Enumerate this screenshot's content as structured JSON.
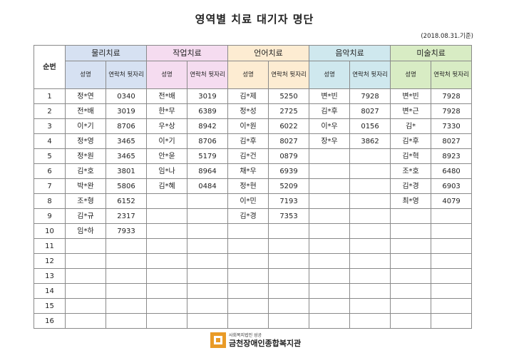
{
  "title": "영역별 치료 대기자 명단",
  "date_note": "(2018.08.31.기준)",
  "header": {
    "number_label": "순번",
    "name_label": "성명",
    "phone_label": "연락처 뒷자리"
  },
  "groups": [
    {
      "label": "물리치료",
      "color": "#d6e1f2"
    },
    {
      "label": "작업치료",
      "color": "#f5dcf0"
    },
    {
      "label": "언어치료",
      "color": "#fdecd2"
    },
    {
      "label": "음악치료",
      "color": "#cfe8ee"
    },
    {
      "label": "미술치료",
      "color": "#d8ecc4"
    }
  ],
  "rows": [
    {
      "num": "1",
      "cells": [
        [
          "정*연",
          "0340"
        ],
        [
          "전*배",
          "3019"
        ],
        [
          "김*제",
          "5250"
        ],
        [
          "변*빈",
          "7928"
        ],
        [
          "변*빈",
          "7928"
        ]
      ]
    },
    {
      "num": "2",
      "cells": [
        [
          "전*배",
          "3019"
        ],
        [
          "한*무",
          "6389"
        ],
        [
          "정*성",
          "2725"
        ],
        [
          "김*후",
          "8027"
        ],
        [
          "변*근",
          "7928"
        ]
      ]
    },
    {
      "num": "3",
      "cells": [
        [
          "이*기",
          "8706"
        ],
        [
          "우*상",
          "8942"
        ],
        [
          "이*원",
          "6022"
        ],
        [
          "이*우",
          "0156"
        ],
        [
          "김*",
          "7330"
        ]
      ]
    },
    {
      "num": "4",
      "cells": [
        [
          "정*영",
          "3465"
        ],
        [
          "이*기",
          "8706"
        ],
        [
          "김*후",
          "8027"
        ],
        [
          "장*우",
          "3862"
        ],
        [
          "김*후",
          "8027"
        ]
      ]
    },
    {
      "num": "5",
      "cells": [
        [
          "정*원",
          "3465"
        ],
        [
          "안*윤",
          "5179"
        ],
        [
          "김*건",
          "0879"
        ],
        [
          "",
          ""
        ],
        [
          "김*혁",
          "8923"
        ]
      ]
    },
    {
      "num": "6",
      "cells": [
        [
          "김*호",
          "3801"
        ],
        [
          "임*나",
          "8964"
        ],
        [
          "채*우",
          "6939"
        ],
        [
          "",
          ""
        ],
        [
          "조*호",
          "6480"
        ]
      ]
    },
    {
      "num": "7",
      "cells": [
        [
          "박*완",
          "5806"
        ],
        [
          "김*혜",
          "0484"
        ],
        [
          "정*현",
          "5209"
        ],
        [
          "",
          ""
        ],
        [
          "김*경",
          "6903"
        ]
      ]
    },
    {
      "num": "8",
      "cells": [
        [
          "조*형",
          "6152"
        ],
        [
          "",
          ""
        ],
        [
          "이*민",
          "7193"
        ],
        [
          "",
          ""
        ],
        [
          "최*영",
          "4079"
        ]
      ]
    },
    {
      "num": "9",
      "cells": [
        [
          "김*규",
          "2317"
        ],
        [
          "",
          ""
        ],
        [
          "김*경",
          "7353"
        ],
        [
          "",
          ""
        ],
        [
          "",
          ""
        ]
      ]
    },
    {
      "num": "10",
      "cells": [
        [
          "임*하",
          "7933"
        ],
        [
          "",
          ""
        ],
        [
          "",
          ""
        ],
        [
          "",
          ""
        ],
        [
          "",
          ""
        ]
      ]
    },
    {
      "num": "11",
      "cells": [
        [
          "",
          ""
        ],
        [
          "",
          ""
        ],
        [
          "",
          ""
        ],
        [
          "",
          ""
        ],
        [
          "",
          ""
        ]
      ]
    },
    {
      "num": "12",
      "cells": [
        [
          "",
          ""
        ],
        [
          "",
          ""
        ],
        [
          "",
          ""
        ],
        [
          "",
          ""
        ],
        [
          "",
          ""
        ]
      ]
    },
    {
      "num": "13",
      "cells": [
        [
          "",
          ""
        ],
        [
          "",
          ""
        ],
        [
          "",
          ""
        ],
        [
          "",
          ""
        ],
        [
          "",
          ""
        ]
      ]
    },
    {
      "num": "14",
      "cells": [
        [
          "",
          ""
        ],
        [
          "",
          ""
        ],
        [
          "",
          ""
        ],
        [
          "",
          ""
        ],
        [
          "",
          ""
        ]
      ]
    },
    {
      "num": "15",
      "cells": [
        [
          "",
          ""
        ],
        [
          "",
          ""
        ],
        [
          "",
          ""
        ],
        [
          "",
          ""
        ],
        [
          "",
          ""
        ]
      ]
    },
    {
      "num": "16",
      "cells": [
        [
          "",
          ""
        ],
        [
          "",
          ""
        ],
        [
          "",
          ""
        ],
        [
          "",
          ""
        ],
        [
          "",
          ""
        ]
      ]
    }
  ],
  "footer": {
    "org_sub": "사회복지법인 성공",
    "org_name": "금천장애인종합복지관",
    "logo_icon": "org-logo-icon"
  }
}
